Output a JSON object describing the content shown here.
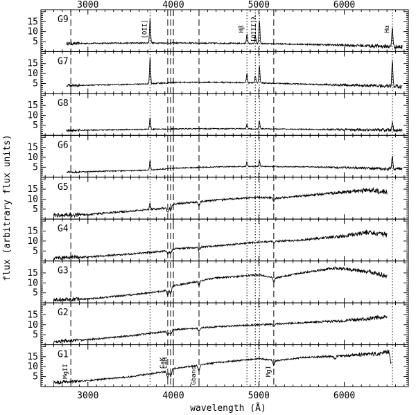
{
  "chart_data": {
    "type": "line",
    "xlabel": "wavelength (Å)",
    "ylabel": "flux (arbitrary flux units)",
    "xlim": [
      2450,
      6750
    ],
    "ylim": [
      0,
      21
    ],
    "x_ticks": [
      "3000",
      "4000",
      "5000",
      "6000"
    ],
    "y_ticks": [
      "5",
      "10",
      "15"
    ],
    "top_x_ticks": [
      "3000",
      "4000",
      "5000",
      "6000"
    ],
    "panels": [
      {
        "label": "G9",
        "x_start": 2750,
        "x_end": 6680,
        "continuum": [
          [
            2750,
            4.0
          ],
          [
            3200,
            4.2
          ],
          [
            3700,
            4.3
          ],
          [
            4200,
            4.3
          ],
          [
            5000,
            4.0
          ],
          [
            5600,
            3.6
          ],
          [
            6200,
            3.0
          ],
          [
            6500,
            2.6
          ],
          [
            6680,
            2.3
          ]
        ],
        "emission": [
          [
            3727,
            12.0
          ],
          [
            4861,
            5.0
          ],
          [
            4959,
            4.0
          ],
          [
            5007,
            11.5
          ],
          [
            6563,
            10.0
          ]
        ],
        "absorption": []
      },
      {
        "label": "G7",
        "x_start": 2750,
        "x_end": 6680,
        "continuum": [
          [
            2750,
            4.0
          ],
          [
            3200,
            4.3
          ],
          [
            3700,
            4.8
          ],
          [
            4000,
            5.5
          ],
          [
            4500,
            5.6
          ],
          [
            5000,
            5.3
          ],
          [
            5600,
            4.6
          ],
          [
            6200,
            4.0
          ],
          [
            6680,
            3.5
          ]
        ],
        "emission": [
          [
            3727,
            13.0
          ],
          [
            4861,
            4.5
          ],
          [
            4959,
            3.5
          ],
          [
            5007,
            8.5
          ],
          [
            6563,
            12.0
          ]
        ],
        "absorption": []
      },
      {
        "label": "G8",
        "x_start": 2750,
        "x_end": 6680,
        "continuum": [
          [
            2750,
            2.5
          ],
          [
            3200,
            2.7
          ],
          [
            3700,
            3.0
          ],
          [
            4200,
            3.3
          ],
          [
            5000,
            3.3
          ],
          [
            5600,
            3.0
          ],
          [
            6200,
            2.8
          ],
          [
            6680,
            2.5
          ]
        ],
        "emission": [
          [
            3727,
            6.0
          ],
          [
            4861,
            2.5
          ],
          [
            5007,
            4.0
          ],
          [
            6563,
            4.0
          ]
        ],
        "absorption": []
      },
      {
        "label": "G6",
        "x_start": 2750,
        "x_end": 6680,
        "continuum": [
          [
            2750,
            2.5
          ],
          [
            3200,
            3.0
          ],
          [
            3700,
            3.5
          ],
          [
            4000,
            4.5
          ],
          [
            4500,
            5.2
          ],
          [
            5000,
            5.4
          ],
          [
            5600,
            5.2
          ],
          [
            6200,
            4.6
          ],
          [
            6680,
            4.0
          ]
        ],
        "emission": [
          [
            3727,
            5.0
          ],
          [
            4861,
            2.5
          ],
          [
            5007,
            3.0
          ],
          [
            6563,
            6.5
          ]
        ],
        "absorption": []
      },
      {
        "label": "G5",
        "x_start": 2600,
        "x_end": 6500,
        "continuum": [
          [
            2600,
            2.0
          ],
          [
            3000,
            2.3
          ],
          [
            3500,
            4.0
          ],
          [
            3900,
            5.5
          ],
          [
            4000,
            7.5
          ],
          [
            4500,
            9.5
          ],
          [
            5000,
            11.0
          ],
          [
            5200,
            10.5
          ],
          [
            5600,
            12.0
          ],
          [
            6000,
            13.5
          ],
          [
            6300,
            14.5
          ],
          [
            6500,
            13.5
          ]
        ],
        "emission": [
          [
            3727,
            3.0
          ]
        ],
        "absorption": [
          [
            3934,
            3.0
          ],
          [
            3968,
            2.5
          ],
          [
            4300,
            2.0
          ],
          [
            5175,
            1.5
          ]
        ]
      },
      {
        "label": "G4",
        "x_start": 2600,
        "x_end": 6500,
        "continuum": [
          [
            2600,
            1.5
          ],
          [
            3000,
            2.0
          ],
          [
            3500,
            3.5
          ],
          [
            3900,
            5.0
          ],
          [
            4000,
            6.0
          ],
          [
            4500,
            7.5
          ],
          [
            5000,
            9.5
          ],
          [
            5500,
            10.5
          ],
          [
            6000,
            12.5
          ],
          [
            6300,
            14.5
          ],
          [
            6500,
            13.0
          ]
        ],
        "emission": [],
        "absorption": [
          [
            3934,
            2.0
          ],
          [
            3968,
            2.0
          ],
          [
            4300,
            1.5
          ],
          [
            5175,
            1.0
          ]
        ]
      },
      {
        "label": "G3",
        "x_start": 2600,
        "x_end": 6500,
        "continuum": [
          [
            2600,
            1.5
          ],
          [
            3000,
            2.0
          ],
          [
            3500,
            4.0
          ],
          [
            3900,
            6.0
          ],
          [
            4000,
            8.5
          ],
          [
            4500,
            12.5
          ],
          [
            5000,
            14.0
          ],
          [
            5200,
            12.5
          ],
          [
            5500,
            15.0
          ],
          [
            5900,
            17.5
          ],
          [
            6300,
            15.5
          ],
          [
            6500,
            13.5
          ]
        ],
        "emission": [],
        "absorption": [
          [
            3934,
            3.0
          ],
          [
            3968,
            3.0
          ],
          [
            4300,
            2.0
          ],
          [
            5175,
            2.0
          ]
        ]
      },
      {
        "label": "G2",
        "x_start": 2600,
        "x_end": 6500,
        "continuum": [
          [
            2600,
            1.5
          ],
          [
            3000,
            2.5
          ],
          [
            3500,
            4.5
          ],
          [
            3900,
            6.5
          ],
          [
            4000,
            7.5
          ],
          [
            4500,
            9.0
          ],
          [
            5000,
            10.0
          ],
          [
            5500,
            11.0
          ],
          [
            6000,
            12.0
          ],
          [
            6500,
            14.0
          ]
        ],
        "emission": [],
        "absorption": [
          [
            3934,
            2.0
          ],
          [
            3968,
            2.0
          ],
          [
            4300,
            1.5
          ],
          [
            5175,
            1.5
          ]
        ]
      },
      {
        "label": "G1",
        "x_start": 2600,
        "x_end": 6550,
        "continuum": [
          [
            2600,
            2.0
          ],
          [
            3000,
            3.0
          ],
          [
            3500,
            5.0
          ],
          [
            3900,
            7.5
          ],
          [
            4000,
            9.0
          ],
          [
            4500,
            12.0
          ],
          [
            5000,
            14.0
          ],
          [
            5200,
            13.0
          ],
          [
            5500,
            14.5
          ],
          [
            6000,
            15.5
          ],
          [
            6400,
            16.5
          ],
          [
            6520,
            17.5
          ],
          [
            6550,
            11.0
          ]
        ],
        "emission": [],
        "absorption": [
          [
            3934,
            3.5
          ],
          [
            3968,
            3.5
          ],
          [
            4300,
            3.0
          ],
          [
            5175,
            2.5
          ],
          [
            5890,
            1.5
          ]
        ]
      }
    ],
    "reference_lines": [
      {
        "x": 2800,
        "style": "dashed"
      },
      {
        "x": 3727,
        "style": "dotted"
      },
      {
        "x": 3934,
        "style": "dashed"
      },
      {
        "x": 3968,
        "style": "dashed"
      },
      {
        "x": 4000,
        "style": "dashed"
      },
      {
        "x": 4300,
        "style": "dashed"
      },
      {
        "x": 4861,
        "style": "dotted"
      },
      {
        "x": 4959,
        "style": "dotted"
      },
      {
        "x": 5007,
        "style": "dotted"
      },
      {
        "x": 5175,
        "style": "dashed"
      },
      {
        "x": 6563,
        "style": "dotted"
      }
    ],
    "top_panel_annotations": [
      {
        "text": "[OII]",
        "x": 3727
      },
      {
        "text": "Hβ",
        "x": 4861
      },
      {
        "text": "[OIII]λ",
        "x": 5007
      },
      {
        "text": "Hα",
        "x": 6563
      }
    ],
    "bottom_panel_annotations": [
      {
        "text": "MgII",
        "x": 2800
      },
      {
        "text": "CaK",
        "x": 3934
      },
      {
        "text": "CaH",
        "x": 3968
      },
      {
        "text": "Gband",
        "x": 4300
      },
      {
        "text": "MgI",
        "x": 5175
      }
    ]
  }
}
